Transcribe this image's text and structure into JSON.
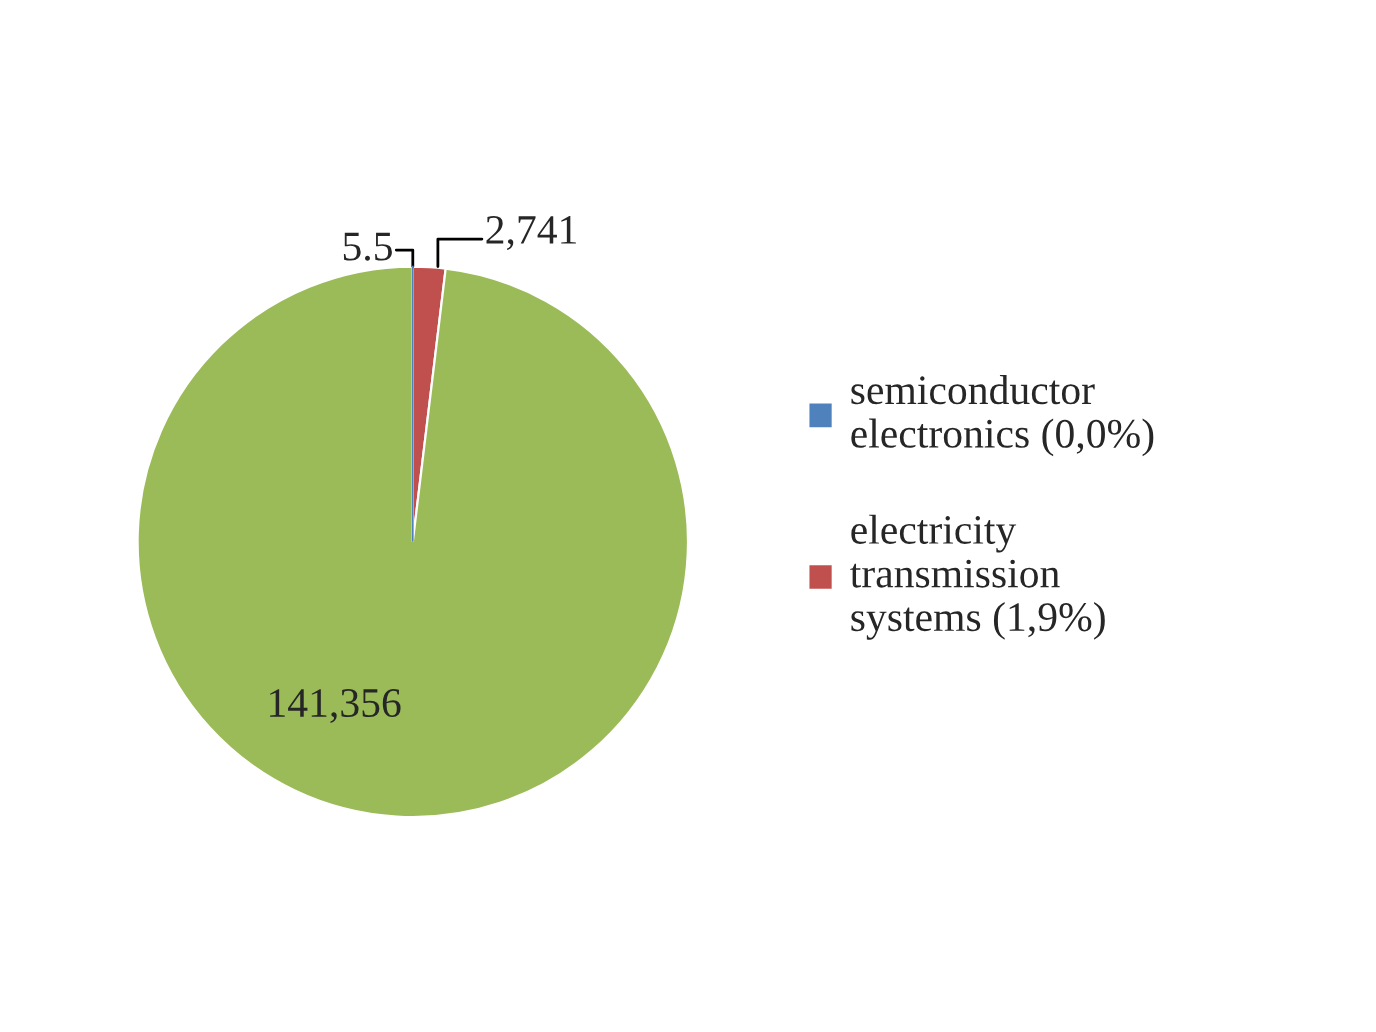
{
  "chart_data": {
    "type": "pie",
    "categories": [
      "semiconductor electronics (0,0%)",
      "electricity transmission systems (1,9%)",
      null
    ],
    "values": [
      5.5,
      2741,
      141356
    ],
    "colors": [
      "#4f81bd",
      "#c0504d",
      "#9bbb59"
    ],
    "value_labels": [
      "5.5",
      "2,741",
      "141,356"
    ],
    "legend": "right"
  }
}
